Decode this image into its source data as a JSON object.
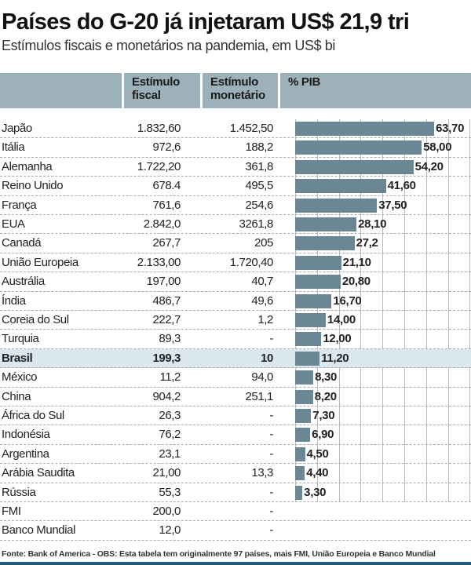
{
  "title": "Países do G-20 já injetaram US$ 21,9 tri",
  "subtitle": "Estímulos fiscais e monetários na pandemia, em US$ bi",
  "headers": {
    "fiscal": "Estímulo fiscal",
    "monetario": "Estímulo monetário",
    "pib": "% PIB"
  },
  "highlight_color": "#dae7ef",
  "bar_color": "#6b8794",
  "chart_data": {
    "type": "table",
    "columns": [
      "",
      "Estímulo fiscal",
      "Estímulo monetário",
      "% PIB"
    ],
    "xlim": [
      0,
      80
    ],
    "grid": true,
    "rows": [
      {
        "name": "Japão",
        "fiscal": "1.832,60",
        "monetario": "1.452,50",
        "pib": 63.7,
        "pib_label": "63,70"
      },
      {
        "name": "Itália",
        "fiscal": "972,6",
        "monetario": "188,2",
        "pib": 58.0,
        "pib_label": "58,00"
      },
      {
        "name": "Alemanha",
        "fiscal": "1.722,20",
        "monetario": "361,8",
        "pib": 54.2,
        "pib_label": "54,20"
      },
      {
        "name": "Reino Unido",
        "fiscal": "678.4",
        "monetario": "495,5",
        "pib": 41.6,
        "pib_label": "41,60"
      },
      {
        "name": "França",
        "fiscal": "761,6",
        "monetario": "254,6",
        "pib": 37.5,
        "pib_label": "37,50"
      },
      {
        "name": "EUA",
        "fiscal": "2.842,0",
        "monetario": "3261,8",
        "pib": 28.1,
        "pib_label": "28,10"
      },
      {
        "name": "Canadá",
        "fiscal": "267,7",
        "monetario": "205",
        "pib": 27.2,
        "pib_label": "27,2"
      },
      {
        "name": "União Europeia",
        "fiscal": "2.133,00",
        "monetario": "1.720,40",
        "pib": 21.1,
        "pib_label": "21,10"
      },
      {
        "name": "Austrália",
        "fiscal": "197,00",
        "monetario": "40,7",
        "pib": 20.8,
        "pib_label": "20,80"
      },
      {
        "name": "Índia",
        "fiscal": "486,7",
        "monetario": "49,6",
        "pib": 16.7,
        "pib_label": "16,70"
      },
      {
        "name": "Coreia do Sul",
        "fiscal": "222,7",
        "monetario": "1,2",
        "pib": 14.0,
        "pib_label": "14,00"
      },
      {
        "name": "Turquia",
        "fiscal": "89,3",
        "monetario": "-",
        "pib": 12.0,
        "pib_label": "12,00"
      },
      {
        "name": "Brasil",
        "fiscal": "199,3",
        "monetario": "10",
        "pib": 11.2,
        "pib_label": "11,20",
        "highlight": true
      },
      {
        "name": "México",
        "fiscal": "11,2",
        "monetario": "94,0",
        "pib": 8.3,
        "pib_label": "8,30"
      },
      {
        "name": "China",
        "fiscal": "904,2",
        "monetario": "251,1",
        "pib": 8.2,
        "pib_label": "8,20"
      },
      {
        "name": "África do Sul",
        "fiscal": "26,3",
        "monetario": "-",
        "pib": 7.3,
        "pib_label": "7,30"
      },
      {
        "name": "Indonésia",
        "fiscal": "76,2",
        "monetario": "-",
        "pib": 6.9,
        "pib_label": "6,90"
      },
      {
        "name": "Argentina",
        "fiscal": "23,1",
        "monetario": "-",
        "pib": 4.5,
        "pib_label": "4,50"
      },
      {
        "name": "Arábia Saudita",
        "fiscal": "21,00",
        "monetario": "13,3",
        "pib": 4.4,
        "pib_label": "4,40"
      },
      {
        "name": "Rússia",
        "fiscal": "55,3",
        "monetario": "-",
        "pib": 3.3,
        "pib_label": "3,30"
      },
      {
        "name": "FMI",
        "fiscal": "200,0",
        "monetario": "-"
      },
      {
        "name": "Banco Mundial",
        "fiscal": "12,0",
        "monetario": "-"
      }
    ]
  },
  "source": "Fonte:  Bank of America - OBS: Esta tabela tem originalmente 97 países,  mais FMI, União Europeia e Banco Mundial"
}
